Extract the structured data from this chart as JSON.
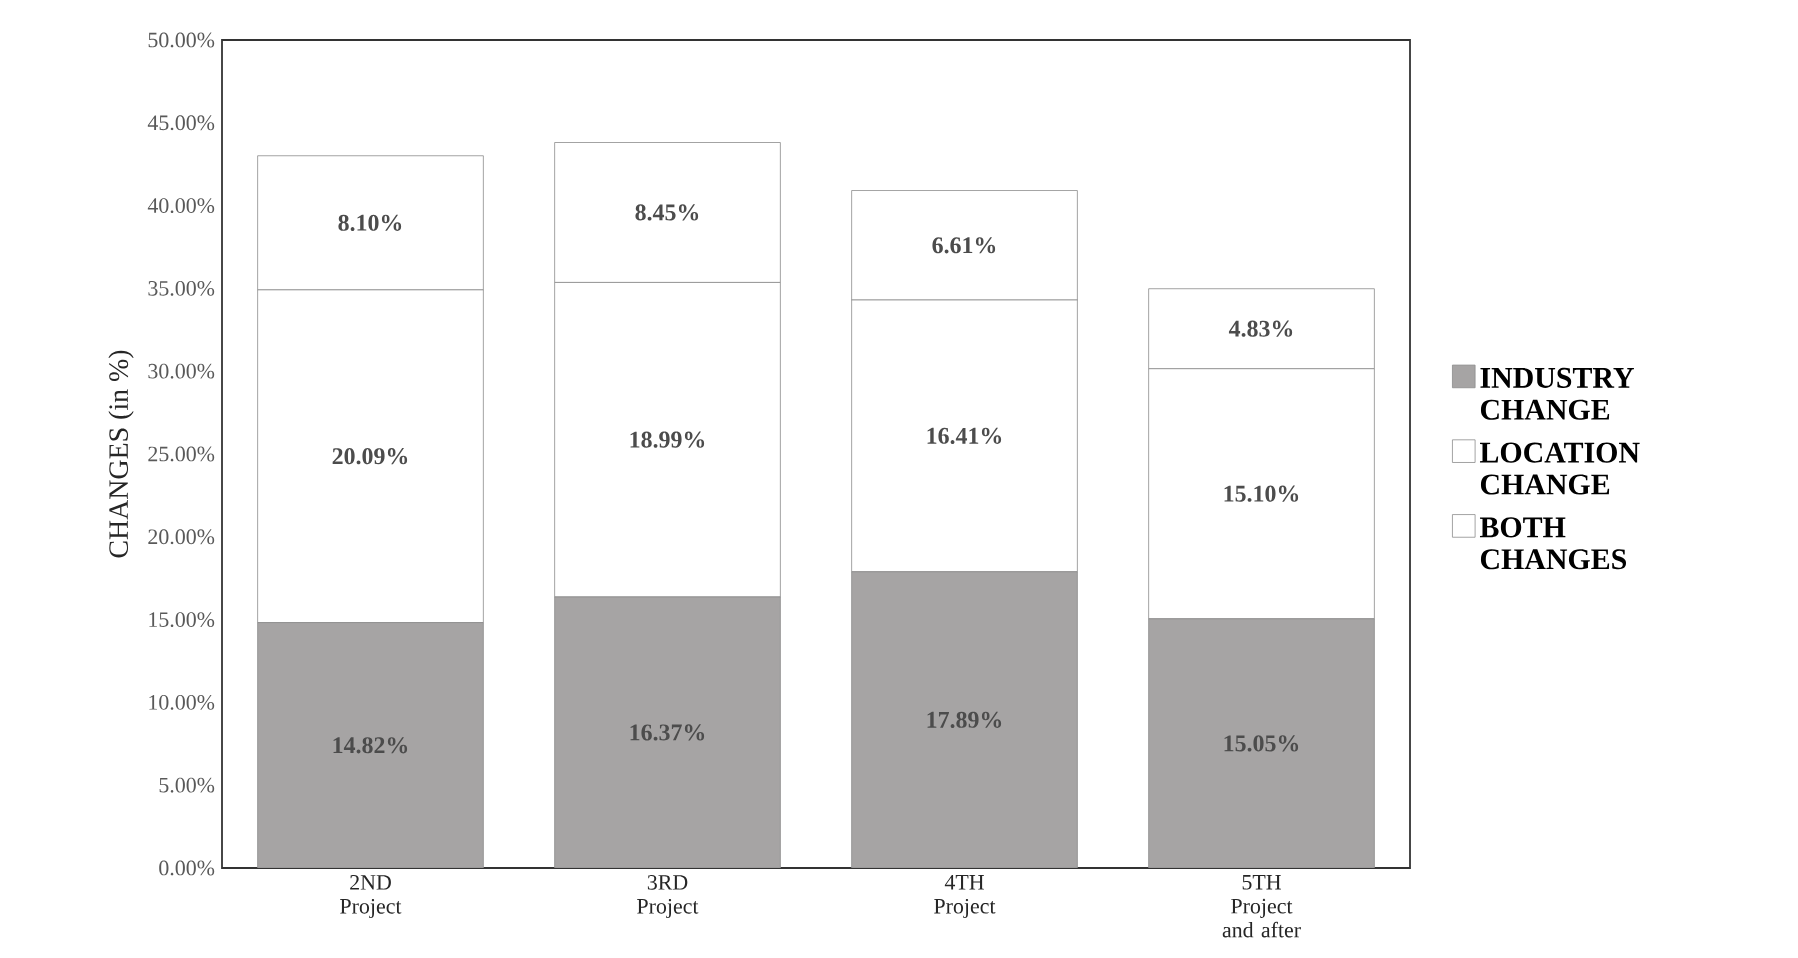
{
  "chart_data": {
    "type": "bar",
    "stacked": true,
    "ylabel": "CHANGES (in %)",
    "categories": [
      "2ND Project",
      "3RD Project",
      "4TH Project",
      "5TH Project and after"
    ],
    "series": [
      {
        "name": "INDUSTRY CHANGE",
        "color": "#a6a4a4",
        "values": [
          14.82,
          16.37,
          17.89,
          15.05
        ],
        "value_labels": [
          "14.82%",
          "16.37%",
          "17.89%",
          "15.05%"
        ]
      },
      {
        "name": "LOCATION CHANGE",
        "color": "#ffffff",
        "values": [
          20.09,
          18.99,
          16.41,
          15.1
        ],
        "value_labels": [
          "20.09%",
          "18.99%",
          "16.41%",
          "15.10%"
        ]
      },
      {
        "name": "BOTH CHANGES",
        "color": "#ffffff",
        "values": [
          8.1,
          8.45,
          6.61,
          4.83
        ],
        "value_labels": [
          "8.10%",
          "8.45%",
          "6.61%",
          "4.83%"
        ]
      }
    ],
    "ylim": [
      0,
      50
    ],
    "yticks": [
      {
        "value": 0,
        "label": "0.00%"
      },
      {
        "value": 5,
        "label": "5.00%"
      },
      {
        "value": 10,
        "label": "10.00%"
      },
      {
        "value": 15,
        "label": "15.00%"
      },
      {
        "value": 20,
        "label": "20.00%"
      },
      {
        "value": 25,
        "label": "25.00%"
      },
      {
        "value": 30,
        "label": "30.00%"
      },
      {
        "value": 35,
        "label": "35.00%"
      },
      {
        "value": 40,
        "label": "40.00%"
      },
      {
        "value": 45,
        "label": "45.00%"
      },
      {
        "value": 50,
        "label": "50.00%"
      }
    ],
    "grid": false,
    "legend": "right"
  }
}
